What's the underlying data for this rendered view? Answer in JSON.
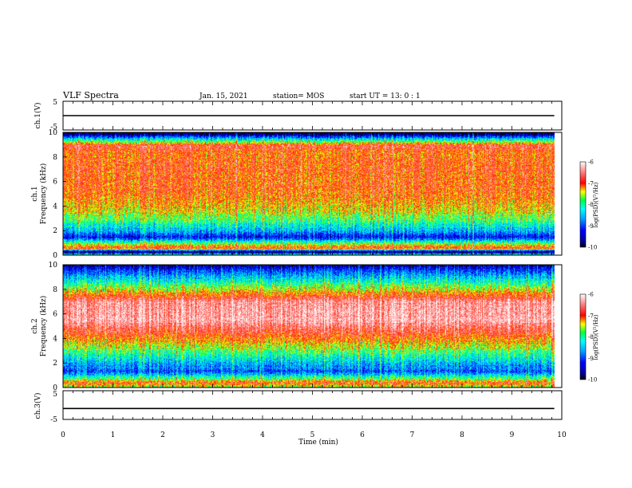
{
  "header": {
    "title": "VLF Spectra",
    "date": "Jan. 15, 2021",
    "station": "station= MOS",
    "start": "start UT =  13: 0  : 1"
  },
  "chart_data": [
    {
      "type": "line",
      "name": "ch1-voltage",
      "ylabel": "ch.1(V)",
      "ylim": [
        -5,
        5
      ],
      "yticks": [
        "5",
        "-5"
      ],
      "xlim": [
        0,
        10
      ],
      "series": [
        {
          "x": [
            0,
            9.85
          ],
          "values": [
            0,
            0
          ]
        }
      ]
    },
    {
      "type": "heatmap",
      "name": "ch1-spectrogram",
      "ylabel": "ch.1",
      "ylabel2": "Frequency (kHz)",
      "ylim": [
        0,
        10
      ],
      "yticks": [
        "0",
        "2",
        "4",
        "6",
        "8",
        "10"
      ],
      "xlim": [
        0,
        10
      ],
      "colorbar": {
        "label": "log(PSD)(V²/Hz)",
        "ticks": [
          "-6",
          "-7",
          "-8",
          "-9",
          "-10"
        ],
        "range": [
          -10,
          -6
        ]
      },
      "profile": [
        {
          "f": 0.0,
          "v": -7.8
        },
        {
          "f": 0.3,
          "v": -10.0
        },
        {
          "f": 0.6,
          "v": -6.9
        },
        {
          "f": 1.0,
          "v": -7.9
        },
        {
          "f": 1.5,
          "v": -9.3
        },
        {
          "f": 2.0,
          "v": -8.6
        },
        {
          "f": 2.6,
          "v": -8.2
        },
        {
          "f": 3.5,
          "v": -7.6
        },
        {
          "f": 5.0,
          "v": -7.2
        },
        {
          "f": 7.0,
          "v": -7.1
        },
        {
          "f": 8.4,
          "v": -7.2
        },
        {
          "f": 8.9,
          "v": -6.8
        },
        {
          "f": 9.4,
          "v": -8.2
        },
        {
          "f": 9.8,
          "v": -9.5
        },
        {
          "f": 10.0,
          "v": -10.0
        }
      ]
    },
    {
      "type": "heatmap",
      "name": "ch2-spectrogram",
      "ylabel": "ch.2",
      "ylabel2": "Frequency (kHz)",
      "ylim": [
        0,
        10
      ],
      "yticks": [
        "0",
        "2",
        "4",
        "6",
        "8",
        "10"
      ],
      "xlim": [
        0,
        10
      ],
      "colorbar": {
        "label": "log(PSD)(V²/Hz)",
        "ticks": [
          "-6",
          "-7",
          "-8",
          "-9",
          "-10"
        ],
        "range": [
          -10,
          -6
        ]
      },
      "profile": [
        {
          "f": 0.0,
          "v": -7.9
        },
        {
          "f": 0.4,
          "v": -7.0
        },
        {
          "f": 0.8,
          "v": -8.0
        },
        {
          "f": 1.3,
          "v": -9.0
        },
        {
          "f": 2.0,
          "v": -8.6
        },
        {
          "f": 3.0,
          "v": -7.9
        },
        {
          "f": 4.0,
          "v": -7.2
        },
        {
          "f": 5.5,
          "v": -6.4
        },
        {
          "f": 7.0,
          "v": -6.5
        },
        {
          "f": 8.0,
          "v": -7.6
        },
        {
          "f": 8.8,
          "v": -8.4
        },
        {
          "f": 9.5,
          "v": -9.0
        },
        {
          "f": 10.0,
          "v": -9.6
        }
      ]
    },
    {
      "type": "line",
      "name": "ch3-voltage",
      "ylabel": "ch.3(V)",
      "ylim": [
        -5,
        5
      ],
      "yticks": [
        "5",
        "-5"
      ],
      "xlim": [
        0,
        10
      ],
      "series": [
        {
          "x": [
            0,
            9.85
          ],
          "values": [
            -1.2,
            -1.2
          ]
        }
      ]
    }
  ],
  "xaxis": {
    "label": "Time (min)",
    "ticks": [
      "0",
      "1",
      "2",
      "3",
      "4",
      "5",
      "6",
      "7",
      "8",
      "9",
      "10"
    ]
  },
  "colors": {
    "axis": "#000000",
    "background": "#ffffff"
  }
}
